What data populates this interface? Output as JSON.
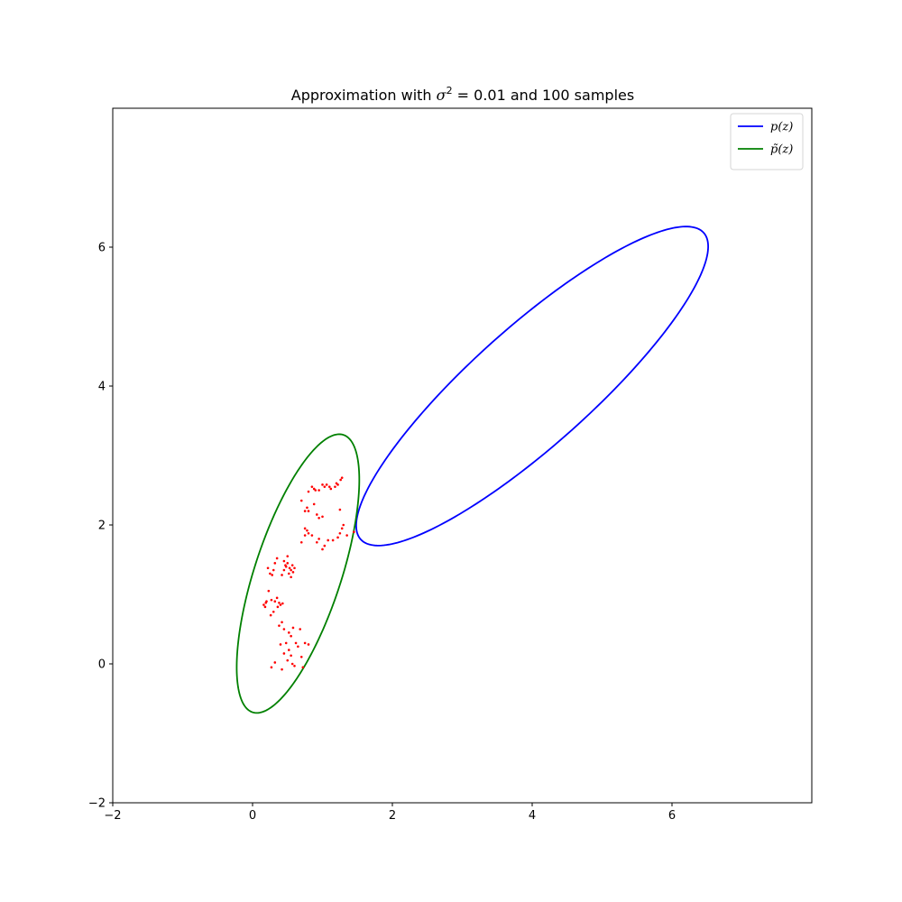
{
  "chart_data": {
    "type": "scatter",
    "title": {
      "prefix": "Approximation with ",
      "symbol": "σ",
      "exponent": "2",
      "suffix": " = 0.01 and 100 samples"
    },
    "xlabel": "",
    "ylabel": "",
    "xlim": [
      -2,
      8
    ],
    "ylim": [
      -2,
      8
    ],
    "xticks": [
      -2,
      0,
      2,
      4,
      6
    ],
    "yticks": [
      -2,
      0,
      2,
      4,
      6
    ],
    "grid": false,
    "legend_position": "top-right",
    "series": [
      {
        "name": "p(z)",
        "kind": "ellipse",
        "color": "#0000ff",
        "center": [
          4.0,
          4.0
        ],
        "semi_major": 3.3,
        "semi_minor": 0.85,
        "angle_deg": 42
      },
      {
        "name": "p̃(z)",
        "kind": "ellipse",
        "color": "#008000",
        "center": [
          0.65,
          1.3
        ],
        "semi_major": 2.1,
        "semi_minor": 0.62,
        "angle_deg": 72
      },
      {
        "name": "",
        "kind": "points",
        "color": "#ff0000",
        "points": [
          [
            0.27,
            -0.05
          ],
          [
            0.32,
            0.02
          ],
          [
            0.42,
            -0.08
          ],
          [
            0.45,
            0.15
          ],
          [
            0.5,
            0.05
          ],
          [
            0.52,
            0.2
          ],
          [
            0.55,
            0.12
          ],
          [
            0.57,
            0.0
          ],
          [
            0.6,
            -0.03
          ],
          [
            0.65,
            0.25
          ],
          [
            0.7,
            0.1
          ],
          [
            0.72,
            -0.05
          ],
          [
            0.48,
            0.3
          ],
          [
            0.4,
            0.28
          ],
          [
            0.55,
            0.4
          ],
          [
            0.62,
            0.3
          ],
          [
            0.75,
            0.3
          ],
          [
            0.8,
            0.28
          ],
          [
            0.45,
            0.5
          ],
          [
            0.52,
            0.45
          ],
          [
            0.42,
            0.6
          ],
          [
            0.68,
            0.5
          ],
          [
            0.58,
            0.52
          ],
          [
            0.38,
            0.55
          ],
          [
            0.16,
            0.85
          ],
          [
            0.18,
            0.82
          ],
          [
            0.2,
            0.9
          ],
          [
            0.23,
            1.05
          ],
          [
            0.27,
            0.92
          ],
          [
            0.32,
            0.9
          ],
          [
            0.35,
            0.95
          ],
          [
            0.38,
            0.88
          ],
          [
            0.4,
            0.85
          ],
          [
            0.43,
            0.87
          ],
          [
            0.3,
            0.75
          ],
          [
            0.26,
            0.7
          ],
          [
            0.19,
            0.88
          ],
          [
            0.36,
            0.82
          ],
          [
            0.25,
            1.3
          ],
          [
            0.28,
            1.28
          ],
          [
            0.3,
            1.35
          ],
          [
            0.32,
            1.45
          ],
          [
            0.35,
            1.52
          ],
          [
            0.22,
            1.38
          ],
          [
            0.45,
            1.35
          ],
          [
            0.48,
            1.4
          ],
          [
            0.5,
            1.45
          ],
          [
            0.52,
            1.3
          ],
          [
            0.55,
            1.35
          ],
          [
            0.58,
            1.32
          ],
          [
            0.6,
            1.38
          ],
          [
            0.45,
            1.48
          ],
          [
            0.5,
            1.55
          ],
          [
            0.55,
            1.25
          ],
          [
            0.47,
            1.42
          ],
          [
            0.42,
            1.28
          ],
          [
            0.53,
            1.38
          ],
          [
            0.57,
            1.42
          ],
          [
            0.7,
            1.75
          ],
          [
            0.75,
            1.85
          ],
          [
            0.78,
            1.92
          ],
          [
            0.8,
            1.88
          ],
          [
            0.92,
            1.75
          ],
          [
            0.95,
            1.8
          ],
          [
            1.0,
            1.65
          ],
          [
            1.03,
            1.7
          ],
          [
            1.08,
            1.78
          ],
          [
            1.15,
            1.78
          ],
          [
            1.22,
            1.82
          ],
          [
            1.25,
            1.88
          ],
          [
            1.28,
            1.95
          ],
          [
            1.3,
            2.0
          ],
          [
            1.45,
            1.9
          ],
          [
            0.75,
            2.2
          ],
          [
            0.78,
            2.25
          ],
          [
            0.8,
            2.2
          ],
          [
            0.88,
            2.3
          ],
          [
            0.92,
            2.15
          ],
          [
            0.95,
            2.1
          ],
          [
            1.0,
            2.12
          ],
          [
            1.25,
            2.22
          ],
          [
            0.8,
            2.48
          ],
          [
            0.85,
            2.55
          ],
          [
            0.9,
            2.5
          ],
          [
            0.95,
            2.5
          ],
          [
            1.0,
            2.58
          ],
          [
            1.03,
            2.55
          ],
          [
            1.06,
            2.58
          ],
          [
            1.12,
            2.52
          ],
          [
            1.18,
            2.55
          ],
          [
            1.22,
            2.58
          ],
          [
            1.26,
            2.65
          ],
          [
            1.28,
            2.68
          ],
          [
            0.7,
            2.35
          ],
          [
            1.2,
            2.6
          ],
          [
            1.1,
            2.55
          ],
          [
            0.85,
            1.85
          ],
          [
            0.75,
            1.95
          ],
          [
            1.35,
            1.85
          ],
          [
            0.88,
            2.52
          ]
        ]
      }
    ]
  }
}
